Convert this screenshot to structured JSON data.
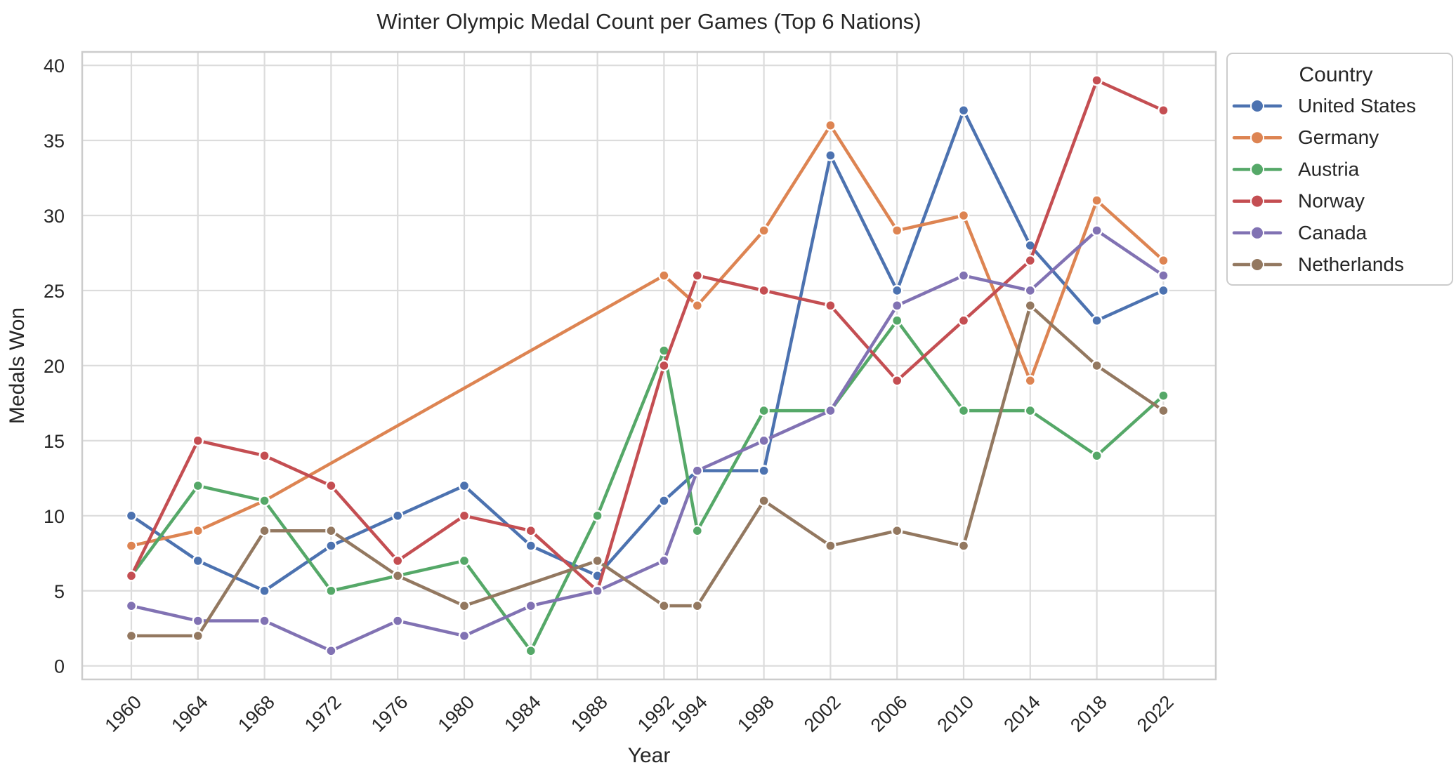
{
  "chart_data": {
    "type": "line",
    "title": "Winter Olympic Medal Count per Games (Top 6 Nations)",
    "xlabel": "Year",
    "ylabel": "Medals Won",
    "legend_title": "Country",
    "legend_position": "outside upper right",
    "grid": true,
    "x": [
      1960,
      1964,
      1968,
      1972,
      1976,
      1980,
      1984,
      1988,
      1992,
      1994,
      1998,
      2002,
      2006,
      2010,
      2014,
      2018,
      2022
    ],
    "xtick_labels": [
      "1960",
      "1964",
      "1968",
      "1972",
      "1976",
      "1980",
      "1984",
      "1988",
      "1992",
      "1994",
      "1998",
      "2002",
      "2006",
      "2010",
      "2014",
      "2018",
      "2022"
    ],
    "yticks": [
      0,
      5,
      10,
      15,
      20,
      25,
      30,
      35,
      40
    ],
    "ytick_labels": [
      "0",
      "5",
      "10",
      "15",
      "20",
      "25",
      "30",
      "35",
      "40"
    ],
    "ylim": [
      0,
      40
    ],
    "series": [
      {
        "name": "United States",
        "color": "#4C72B0",
        "values": [
          10,
          7,
          5,
          8,
          10,
          12,
          8,
          6,
          11,
          13,
          13,
          34,
          25,
          37,
          28,
          23,
          25
        ]
      },
      {
        "name": "Germany",
        "color": "#DD8452",
        "values": [
          8,
          9,
          11,
          null,
          null,
          null,
          null,
          null,
          26,
          24,
          29,
          36,
          29,
          30,
          19,
          31,
          27
        ]
      },
      {
        "name": "Austria",
        "color": "#55A868",
        "values": [
          6,
          12,
          11,
          5,
          6,
          7,
          1,
          10,
          21,
          9,
          17,
          17,
          23,
          17,
          17,
          14,
          18
        ]
      },
      {
        "name": "Norway",
        "color": "#C44E52",
        "values": [
          6,
          15,
          14,
          12,
          7,
          10,
          9,
          5,
          20,
          26,
          25,
          24,
          19,
          23,
          27,
          39,
          37
        ]
      },
      {
        "name": "Canada",
        "color": "#8172B3",
        "values": [
          4,
          3,
          3,
          1,
          3,
          2,
          4,
          5,
          7,
          13,
          15,
          17,
          24,
          26,
          25,
          29,
          26
        ]
      },
      {
        "name": "Netherlands",
        "color": "#937860",
        "values": [
          2,
          2,
          9,
          9,
          6,
          4,
          null,
          7,
          4,
          4,
          11,
          8,
          9,
          8,
          24,
          20,
          17
        ]
      }
    ],
    "style": {
      "grid_color": "#dcdcdc",
      "spine_color": "#cccccc",
      "text_color": "#262626",
      "background": "#ffffff"
    }
  }
}
